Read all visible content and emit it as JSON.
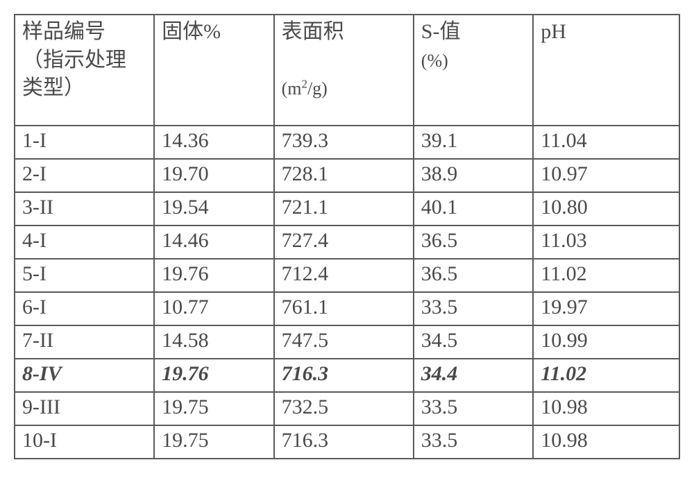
{
  "table": {
    "columns": [
      {
        "label": "样品编号（指示处理类型）",
        "unit": ""
      },
      {
        "label": "固体%",
        "unit": ""
      },
      {
        "label": "表面积",
        "unit": "(m²/g)"
      },
      {
        "label": "S-值",
        "unit": "(%)"
      },
      {
        "label": "pH",
        "unit": ""
      }
    ],
    "rows": [
      {
        "cells": [
          "1-I",
          "14.36",
          "739.3",
          "39.1",
          "11.04"
        ],
        "emph": false
      },
      {
        "cells": [
          "2-I",
          "19.70",
          "728.1",
          "38.9",
          "10.97"
        ],
        "emph": false
      },
      {
        "cells": [
          "3-II",
          "19.54",
          "721.1",
          "40.1",
          "10.80"
        ],
        "emph": false
      },
      {
        "cells": [
          "4-I",
          "14.46",
          "727.4",
          "36.5",
          "11.03"
        ],
        "emph": false
      },
      {
        "cells": [
          "5-I",
          "19.76",
          "712.4",
          "36.5",
          "11.02"
        ],
        "emph": false
      },
      {
        "cells": [
          "6-I",
          "10.77",
          "761.1",
          "33.5",
          "19.97"
        ],
        "emph": false
      },
      {
        "cells": [
          "7-II",
          "14.58",
          "747.5",
          "34.5",
          "10.99"
        ],
        "emph": false
      },
      {
        "cells": [
          "8-IV",
          "19.76",
          "716.3",
          "34.4",
          "11.02"
        ],
        "emph": true
      },
      {
        "cells": [
          "9-III",
          "19.75",
          "732.5",
          "33.5",
          "10.98"
        ],
        "emph": false
      },
      {
        "cells": [
          "10-I",
          "19.75",
          "716.3",
          "33.5",
          "10.98"
        ],
        "emph": false
      }
    ],
    "style": {
      "border_color": "#595959",
      "text_color": "#4a4a4a",
      "background_color": "#ffffff",
      "font_family": "Times New Roman / SimSun",
      "header_fontsize_pt": 22,
      "body_fontsize_pt": 22,
      "col_widths_pct": [
        21,
        18,
        21,
        18,
        22
      ],
      "emphasis_row_index": 7,
      "emphasis_style": "bold-italic"
    }
  }
}
